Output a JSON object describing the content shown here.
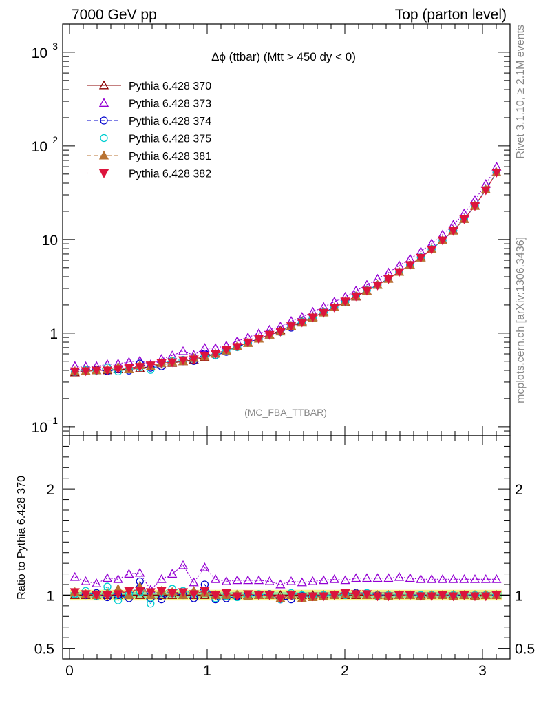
{
  "header": {
    "left": "7000 GeV pp",
    "right": "Top (parton level)"
  },
  "side": {
    "rivet": "Rivet 3.1.10, ≥ 2.1M events",
    "mcplots": "mcplots.cern.ch [arXiv:1306.3436]"
  },
  "chart_data": [
    {
      "type": "line",
      "panel": "main",
      "title": "Δϕ (ttbar) (Mtt > 450 dy < 0)",
      "watermark": "(MC_FBA_TTBAR)",
      "ylog": true,
      "xlim": [
        -0.05,
        3.2
      ],
      "ylim": [
        0.08,
        2000
      ],
      "yticks": [
        {
          "v": 0.1,
          "base": "10",
          "exp": "−1"
        },
        {
          "v": 1,
          "base": "1",
          "exp": ""
        },
        {
          "v": 10,
          "base": "10",
          "exp": ""
        },
        {
          "v": 100,
          "base": "10",
          "exp": "2"
        },
        {
          "v": 1000,
          "base": "10",
          "exp": "3"
        }
      ],
      "x": [
        0.039,
        0.118,
        0.196,
        0.275,
        0.353,
        0.432,
        0.511,
        0.589,
        0.668,
        0.746,
        0.825,
        0.903,
        0.982,
        1.06,
        1.139,
        1.218,
        1.296,
        1.375,
        1.453,
        1.532,
        1.61,
        1.689,
        1.767,
        1.846,
        1.924,
        2.003,
        2.081,
        2.16,
        2.238,
        2.317,
        2.395,
        2.474,
        2.552,
        2.631,
        2.71,
        2.788,
        2.867,
        2.945,
        3.024,
        3.102
      ],
      "reference": [
        0.38,
        0.39,
        0.4,
        0.4,
        0.41,
        0.41,
        0.42,
        0.44,
        0.46,
        0.48,
        0.5,
        0.52,
        0.55,
        0.6,
        0.65,
        0.72,
        0.79,
        0.87,
        0.96,
        1.07,
        1.19,
        1.33,
        1.49,
        1.67,
        1.88,
        2.14,
        2.45,
        2.82,
        3.27,
        3.82,
        4.5,
        5.35,
        6.45,
        7.9,
        9.8,
        12.5,
        16.5,
        23.0,
        34.0,
        52.0
      ],
      "series": [
        {
          "name": "Pythia 6.428 370",
          "color": "#8b0000",
          "marker": "triangle-open",
          "dash": "solid",
          "ratio": [
            1.0,
            1.0,
            1.0,
            1.0,
            1.0,
            1.0,
            1.0,
            1.0,
            1.0,
            1.0,
            1.0,
            1.0,
            1.0,
            1.0,
            1.0,
            1.0,
            1.0,
            1.0,
            1.0,
            1.0,
            1.0,
            1.0,
            1.0,
            1.0,
            1.0,
            1.0,
            1.0,
            1.0,
            1.0,
            1.0,
            1.0,
            1.0,
            1.0,
            1.0,
            1.0,
            1.0,
            1.0,
            1.0,
            1.0,
            1.0
          ]
        },
        {
          "name": "Pythia 6.428 373",
          "color": "#9400d3",
          "marker": "triangle-open",
          "dash": "dot",
          "ratio": [
            1.17,
            1.13,
            1.11,
            1.16,
            1.15,
            1.2,
            1.21,
            1.05,
            1.15,
            1.2,
            1.28,
            1.12,
            1.26,
            1.15,
            1.13,
            1.14,
            1.14,
            1.14,
            1.13,
            1.1,
            1.13,
            1.12,
            1.13,
            1.14,
            1.15,
            1.14,
            1.16,
            1.16,
            1.16,
            1.16,
            1.17,
            1.16,
            1.15,
            1.15,
            1.15,
            1.15,
            1.15,
            1.15,
            1.15,
            1.15
          ]
        },
        {
          "name": "Pythia 6.428 374",
          "color": "#0000cd",
          "marker": "circle-open",
          "dash": "dash",
          "ratio": [
            1.01,
            1.0,
            1.02,
            0.98,
            1.0,
            0.97,
            1.13,
            0.97,
            0.96,
            1.02,
            1.0,
            0.97,
            1.1,
            0.96,
            0.97,
            0.99,
            1.0,
            1.0,
            1.01,
            0.96,
            0.96,
            0.99,
            0.99,
            1.0,
            1.0,
            1.01,
            1.02,
            1.02,
            1.0,
            1.0,
            1.0,
            1.0,
            1.0,
            1.0,
            1.0,
            1.0,
            1.0,
            1.0,
            1.0,
            1.0
          ]
        },
        {
          "name": "Pythia 6.428 375",
          "color": "#00ced1",
          "marker": "circle-open",
          "dash": "dot",
          "ratio": [
            1.01,
            1.04,
            0.99,
            1.08,
            0.95,
            1.01,
            1.03,
            0.92,
            1.03,
            1.06,
            1.04,
            1.02,
            1.03,
            0.97,
            0.99,
            0.98,
            0.99,
            1.01,
            1.0,
            0.96,
            1.02,
            1.0,
            0.99,
            1.0,
            1.0,
            1.0,
            1.01,
            1.02,
            0.99,
            1.0,
            1.0,
            1.0,
            1.0,
            1.0,
            1.0,
            1.0,
            1.0,
            1.0,
            1.0,
            1.0
          ]
        },
        {
          "name": "Pythia 6.428 381",
          "color": "#b87333",
          "marker": "triangle-full",
          "dash": "dash",
          "ratio": [
            1.03,
            1.01,
            1.0,
            1.02,
            1.06,
            1.0,
            1.08,
            1.0,
            1.04,
            1.03,
            1.0,
            1.04,
            1.02,
            1.0,
            1.0,
            1.01,
            0.99,
            1.0,
            1.0,
            0.97,
            1.0,
            0.97,
            0.98,
            0.99,
            1.0,
            1.01,
            1.01,
            1.0,
            1.0,
            0.99,
            1.0,
            1.0,
            0.99,
            1.0,
            1.0,
            0.99,
            1.0,
            0.99,
            1.0,
            1.0
          ]
        },
        {
          "name": "Pythia 6.428 382",
          "color": "#dc143c",
          "marker": "triangle-down-full",
          "dash": "dashdot",
          "ratio": [
            1.03,
            1.01,
            1.0,
            1.0,
            1.01,
            1.04,
            1.04,
            1.03,
            1.04,
            1.02,
            1.03,
            1.01,
            1.04,
            1.0,
            1.02,
            0.99,
            1.01,
            1.0,
            1.0,
            0.97,
            1.0,
            0.98,
            0.99,
            0.99,
            1.0,
            1.02,
            1.01,
            1.01,
            0.99,
            0.99,
            1.0,
            1.0,
            0.99,
            0.99,
            1.0,
            0.99,
            1.0,
            0.99,
            0.99,
            1.0
          ]
        }
      ]
    },
    {
      "type": "line",
      "panel": "ratio",
      "ylabel": "Ratio to Pythia 6.428 370",
      "xlim": [
        -0.05,
        3.2
      ],
      "ylim": [
        0.4,
        2.5
      ],
      "yticks": [
        {
          "v": 0.5,
          "label": "0.5"
        },
        {
          "v": 1,
          "label": "1"
        },
        {
          "v": 2,
          "label": "2"
        }
      ],
      "xticks": [
        {
          "v": 0,
          "label": "0"
        },
        {
          "v": 1,
          "label": "1"
        },
        {
          "v": 2,
          "label": "2"
        },
        {
          "v": 3,
          "label": "3"
        }
      ],
      "band": {
        "yellow": [
          0.95,
          1.05
        ],
        "green": [
          0.97,
          1.03
        ]
      }
    }
  ]
}
